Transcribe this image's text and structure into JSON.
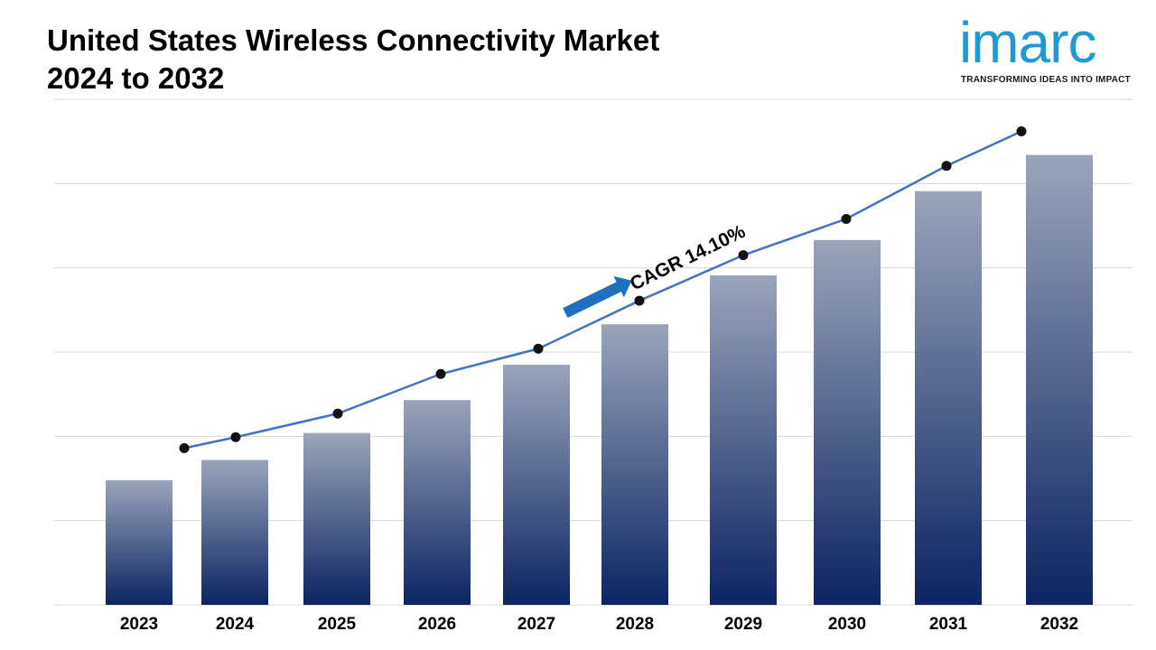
{
  "header": {
    "title_line1": "United States Wireless Connectivity Market",
    "title_line2": "2024 to 2032"
  },
  "logo": {
    "word": "imarc",
    "tagline": "TRANSFORMING IDEAS INTO IMPACT",
    "color": "#1e9bd7"
  },
  "chart_data": {
    "type": "bar",
    "title": "United States Wireless Connectivity Market 2024 to 2032",
    "categories": [
      "2023",
      "2024",
      "2025",
      "2026",
      "2027",
      "2028",
      "2029",
      "2030",
      "2031",
      "2032"
    ],
    "series": [
      {
        "type": "bar",
        "values": [
          1.48,
          1.72,
          2.04,
          2.43,
          2.85,
          3.33,
          3.91,
          4.33,
          4.91,
          5.34
        ]
      },
      {
        "type": "line",
        "values": [
          1.86,
          1.99,
          2.27,
          2.74,
          3.04,
          3.61,
          4.15,
          4.58,
          5.21,
          5.62
        ]
      }
    ],
    "ylim": [
      0,
      6
    ],
    "y_gridlines": [
      1,
      2,
      3,
      4,
      5,
      6
    ],
    "y_axis_labels_shown": false,
    "annotation": "CAGR 14.10%",
    "grid": true,
    "legend": "none",
    "bar_gradient": [
      "#9aa4bb",
      "#0c2463"
    ],
    "line_color": "#4472c4",
    "marker_color": "#111111",
    "arrow_color": "#1f6fc0"
  }
}
